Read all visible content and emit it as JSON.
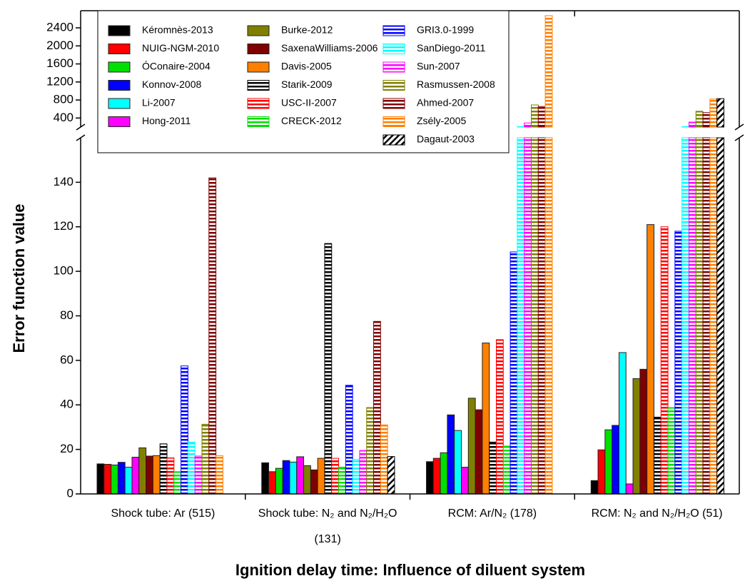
{
  "chart_data": {
    "type": "bar",
    "x_label": "Ignition delay time: Influence of diluent system",
    "y_label": "Error function value",
    "categories": [
      "Shock tube: Ar (515)",
      "Shock tube: N₂ and N₂/H₂O (131)",
      "RCM: Ar/N₂ (178)",
      "RCM: N₂ and N₂/H₂O (51)"
    ],
    "ylim": [
      0,
      160
    ],
    "yticks": [
      0,
      20,
      40,
      60,
      80,
      100,
      120,
      140
    ],
    "ylim_upper": [
      200,
      2780
    ],
    "yticks_upper": [
      400,
      800,
      1200,
      1600,
      2000,
      2400
    ],
    "axis_break": true,
    "legend": "top-left",
    "series": [
      {
        "name": "Kéromnès-2013",
        "color": "#000000",
        "pattern": "solid",
        "values": [
          13.5,
          14,
          14.5,
          6
        ]
      },
      {
        "name": "NUIG-NGM-2010",
        "color": "#ff0000",
        "pattern": "solid",
        "values": [
          13.3,
          10,
          16,
          19.8
        ]
      },
      {
        "name": "ÓConaire-2004",
        "color": "#00e000",
        "pattern": "solid",
        "values": [
          13,
          11.5,
          18.5,
          28.8
        ]
      },
      {
        "name": "Konnov-2008",
        "color": "#0000ff",
        "pattern": "solid",
        "values": [
          14.2,
          15,
          35.5,
          30.8
        ]
      },
      {
        "name": "Li-2007",
        "color": "#00ffff",
        "pattern": "solid",
        "values": [
          12,
          14.3,
          28.5,
          63.5
        ]
      },
      {
        "name": "Hong-2011",
        "color": "#ff00ff",
        "pattern": "solid",
        "values": [
          16.5,
          16.7,
          12,
          4.5
        ]
      },
      {
        "name": "Burke-2012",
        "color": "#808000",
        "pattern": "solid",
        "values": [
          20.7,
          12.7,
          43,
          51.8
        ]
      },
      {
        "name": "SaxenaWilliams-2006",
        "color": "#800000",
        "pattern": "solid",
        "values": [
          17,
          10.8,
          37.8,
          56
        ]
      },
      {
        "name": "Davis-2005",
        "color": "#ff8000",
        "pattern": "solid",
        "values": [
          17.2,
          16,
          67.8,
          121
        ]
      },
      {
        "name": "Starik-2009",
        "color": "#000000",
        "pattern": "stripes",
        "values": [
          22.5,
          112.5,
          23.3,
          34.5
        ]
      },
      {
        "name": "USC-II-2007",
        "color": "#ff0000",
        "pattern": "stripes",
        "values": [
          16.2,
          16,
          69.3,
          120
        ]
      },
      {
        "name": "CRECK-2012",
        "color": "#00e000",
        "pattern": "stripes",
        "values": [
          10,
          12,
          21.5,
          38.8
        ]
      },
      {
        "name": "GRI3.0-1999",
        "color": "#0000ff",
        "pattern": "stripes",
        "values": [
          57.5,
          48.8,
          108.7,
          118
        ]
      },
      {
        "name": "SanDiego-2011",
        "color": "#00ffff",
        "pattern": "stripes",
        "values": [
          23.3,
          15.5,
          210,
          210
        ]
      },
      {
        "name": "Sun-2007",
        "color": "#ff00ff",
        "pattern": "stripes",
        "values": [
          17,
          19.5,
          290,
          310
        ]
      },
      {
        "name": "Rasmussen-2008",
        "color": "#808000",
        "pattern": "stripes",
        "values": [
          31.3,
          38.8,
          690,
          550
        ]
      },
      {
        "name": "Ahmed-2007",
        "color": "#800000",
        "pattern": "stripes",
        "values": [
          142,
          77.5,
          655,
          520
        ]
      },
      {
        "name": "Zsély-2005",
        "color": "#ff8000",
        "pattern": "stripes",
        "values": [
          17.2,
          31,
          2670,
          820
        ]
      },
      {
        "name": "Dagaut-2003",
        "color": "#000000",
        "pattern": "hatch",
        "values": [
          null,
          16.8,
          null,
          830
        ]
      }
    ]
  }
}
